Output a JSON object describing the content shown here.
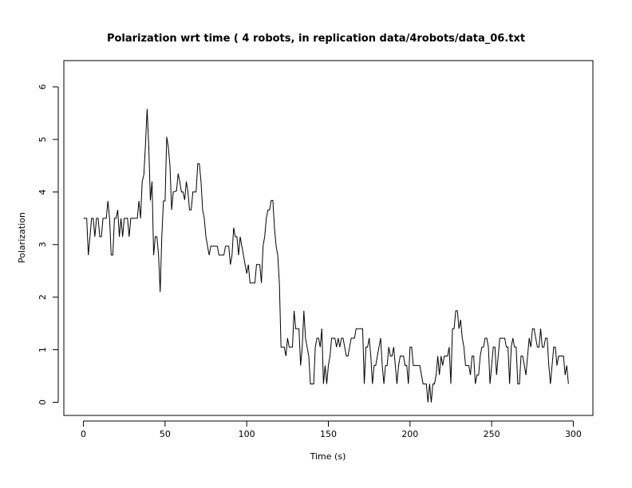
{
  "chart_data": {
    "type": "line",
    "title": "Polarization wrt time ( 4 robots, in replication  data/4robots/data_06.txt",
    "xlabel": "Time (s)",
    "ylabel": "Polarization",
    "xlim": [
      -12,
      312
    ],
    "ylim": [
      -0.25,
      6.5
    ],
    "xticks": [
      0,
      50,
      100,
      150,
      200,
      250,
      300
    ],
    "yticks": [
      0,
      1,
      2,
      3,
      4,
      5,
      6
    ],
    "grid": false,
    "series": [
      {
        "values": [
          [
            0,
            3.5
          ],
          [
            2,
            3.5
          ],
          [
            3,
            2.8
          ],
          [
            5,
            3.5
          ],
          [
            6,
            3.5
          ],
          [
            7,
            3.15
          ],
          [
            8,
            3.5
          ],
          [
            9,
            3.5
          ],
          [
            10,
            3.15
          ],
          [
            11,
            3.15
          ],
          [
            12,
            3.5
          ],
          [
            14,
            3.5
          ],
          [
            15,
            3.83
          ],
          [
            16,
            3.5
          ],
          [
            17,
            2.8
          ],
          [
            18,
            2.8
          ],
          [
            19,
            3.5
          ],
          [
            20,
            3.5
          ],
          [
            21,
            3.66
          ],
          [
            22,
            3.15
          ],
          [
            23,
            3.5
          ],
          [
            24,
            3.15
          ],
          [
            25,
            3.5
          ],
          [
            27,
            3.5
          ],
          [
            28,
            3.15
          ],
          [
            29,
            3.5
          ],
          [
            33,
            3.5
          ],
          [
            34,
            3.83
          ],
          [
            35,
            3.5
          ],
          [
            36,
            4.2
          ],
          [
            37,
            4.33
          ],
          [
            38,
            4.9
          ],
          [
            39,
            5.58
          ],
          [
            40,
            4.88
          ],
          [
            41,
            3.84
          ],
          [
            42,
            4.2
          ],
          [
            43,
            2.8
          ],
          [
            44,
            3.15
          ],
          [
            45,
            3.15
          ],
          [
            46,
            2.8
          ],
          [
            47,
            2.1
          ],
          [
            48,
            3.15
          ],
          [
            49,
            3.83
          ],
          [
            50,
            3.83
          ],
          [
            51,
            5.05
          ],
          [
            52,
            4.85
          ],
          [
            53,
            4.5
          ],
          [
            54,
            3.66
          ],
          [
            55,
            4.0
          ],
          [
            57,
            4.02
          ],
          [
            58,
            4.35
          ],
          [
            59,
            4.2
          ],
          [
            60,
            4.0
          ],
          [
            61,
            4.0
          ],
          [
            62,
            3.85
          ],
          [
            63,
            4.2
          ],
          [
            64,
            4.0
          ],
          [
            65,
            3.66
          ],
          [
            66,
            3.66
          ],
          [
            67,
            4.0
          ],
          [
            69,
            4.0
          ],
          [
            70,
            4.54
          ],
          [
            71,
            4.54
          ],
          [
            72,
            4.2
          ],
          [
            73,
            3.66
          ],
          [
            74,
            3.5
          ],
          [
            75,
            3.15
          ],
          [
            76,
            2.97
          ],
          [
            77,
            2.8
          ],
          [
            78,
            2.97
          ],
          [
            82,
            2.97
          ],
          [
            83,
            2.8
          ],
          [
            86,
            2.8
          ],
          [
            87,
            2.97
          ],
          [
            89,
            2.97
          ],
          [
            90,
            2.62
          ],
          [
            91,
            2.8
          ],
          [
            92,
            3.32
          ],
          [
            93,
            3.15
          ],
          [
            94,
            3.15
          ],
          [
            95,
            2.8
          ],
          [
            96,
            3.15
          ],
          [
            97,
            2.97
          ],
          [
            98,
            2.8
          ],
          [
            99,
            2.62
          ],
          [
            100,
            2.45
          ],
          [
            101,
            2.62
          ],
          [
            102,
            2.27
          ],
          [
            105,
            2.27
          ],
          [
            106,
            2.62
          ],
          [
            107,
            2.62
          ],
          [
            108,
            2.62
          ],
          [
            109,
            2.27
          ],
          [
            110,
            2.97
          ],
          [
            111,
            3.15
          ],
          [
            112,
            3.5
          ],
          [
            113,
            3.66
          ],
          [
            114,
            3.66
          ],
          [
            115,
            3.84
          ],
          [
            116,
            3.84
          ],
          [
            117,
            3.32
          ],
          [
            118,
            2.97
          ],
          [
            119,
            2.8
          ],
          [
            120,
            2.27
          ],
          [
            121,
            1.05
          ],
          [
            123,
            1.05
          ],
          [
            124,
            0.88
          ],
          [
            125,
            1.22
          ],
          [
            126,
            1.05
          ],
          [
            128,
            1.05
          ],
          [
            129,
            1.74
          ],
          [
            130,
            1.4
          ],
          [
            132,
            1.4
          ],
          [
            133,
            0.7
          ],
          [
            134,
            1.05
          ],
          [
            135,
            1.74
          ],
          [
            136,
            1.22
          ],
          [
            137,
            1.05
          ],
          [
            138,
            0.88
          ],
          [
            139,
            0.35
          ],
          [
            141,
            0.35
          ],
          [
            142,
            1.05
          ],
          [
            143,
            1.22
          ],
          [
            144,
            1.22
          ],
          [
            145,
            1.05
          ],
          [
            146,
            1.4
          ],
          [
            147,
            0.35
          ],
          [
            148,
            0.7
          ],
          [
            149,
            0.35
          ],
          [
            150,
            0.7
          ],
          [
            151,
            0.88
          ],
          [
            152,
            1.22
          ],
          [
            154,
            1.22
          ],
          [
            155,
            1.05
          ],
          [
            156,
            1.22
          ],
          [
            157,
            1.05
          ],
          [
            158,
            1.22
          ],
          [
            159,
            1.22
          ],
          [
            160,
            1.05
          ],
          [
            161,
            0.88
          ],
          [
            162,
            0.88
          ],
          [
            163,
            1.05
          ],
          [
            164,
            1.22
          ],
          [
            166,
            1.22
          ],
          [
            167,
            1.4
          ],
          [
            171,
            1.4
          ],
          [
            172,
            0.35
          ],
          [
            173,
            1.05
          ],
          [
            174,
            1.05
          ],
          [
            175,
            1.22
          ],
          [
            176,
            0.88
          ],
          [
            177,
            0.35
          ],
          [
            178,
            0.7
          ],
          [
            179,
            0.7
          ],
          [
            180,
            0.88
          ],
          [
            181,
            1.05
          ],
          [
            182,
            1.22
          ],
          [
            183,
            0.7
          ],
          [
            184,
            0.35
          ],
          [
            185,
            0.7
          ],
          [
            186,
            0.7
          ],
          [
            187,
            1.05
          ],
          [
            188,
            0.88
          ],
          [
            189,
            0.88
          ],
          [
            190,
            1.05
          ],
          [
            191,
            0.7
          ],
          [
            192,
            0.35
          ],
          [
            193,
            0.7
          ],
          [
            194,
            0.88
          ],
          [
            196,
            0.88
          ],
          [
            197,
            0.7
          ],
          [
            198,
            0.7
          ],
          [
            199,
            0.35
          ],
          [
            200,
            1.05
          ],
          [
            201,
            1.05
          ],
          [
            202,
            0.7
          ],
          [
            206,
            0.7
          ],
          [
            207,
            0.52
          ],
          [
            208,
            0.35
          ],
          [
            210,
            0.35
          ],
          [
            211,
            0.0
          ],
          [
            212,
            0.35
          ],
          [
            213,
            0.0
          ],
          [
            214,
            0.35
          ],
          [
            215,
            0.35
          ],
          [
            216,
            0.52
          ],
          [
            217,
            0.88
          ],
          [
            218,
            0.52
          ],
          [
            219,
            0.88
          ],
          [
            220,
            0.7
          ],
          [
            221,
            0.88
          ],
          [
            222,
            0.88
          ],
          [
            223,
            0.88
          ],
          [
            224,
            1.05
          ],
          [
            225,
            0.35
          ],
          [
            226,
            1.4
          ],
          [
            227,
            1.4
          ],
          [
            228,
            1.74
          ],
          [
            229,
            1.74
          ],
          [
            230,
            1.4
          ],
          [
            231,
            1.57
          ],
          [
            232,
            1.22
          ],
          [
            233,
            1.05
          ],
          [
            234,
            0.7
          ],
          [
            236,
            0.7
          ],
          [
            237,
            0.52
          ],
          [
            238,
            0.88
          ],
          [
            239,
            0.88
          ],
          [
            240,
            0.35
          ],
          [
            241,
            0.52
          ],
          [
            242,
            0.52
          ],
          [
            243,
            0.88
          ],
          [
            244,
            1.05
          ],
          [
            245,
            1.05
          ],
          [
            246,
            1.22
          ],
          [
            247,
            1.22
          ],
          [
            248,
            1.05
          ],
          [
            249,
            0.35
          ],
          [
            250,
            0.7
          ],
          [
            251,
            1.05
          ],
          [
            252,
            1.05
          ],
          [
            253,
            0.52
          ],
          [
            254,
            0.88
          ],
          [
            255,
            1.22
          ],
          [
            258,
            1.22
          ],
          [
            259,
            1.05
          ],
          [
            260,
            1.05
          ],
          [
            261,
            0.35
          ],
          [
            262,
            1.05
          ],
          [
            263,
            1.22
          ],
          [
            264,
            1.05
          ],
          [
            265,
            1.05
          ],
          [
            266,
            0.35
          ],
          [
            267,
            0.35
          ],
          [
            268,
            0.88
          ],
          [
            269,
            0.88
          ],
          [
            270,
            0.7
          ],
          [
            271,
            0.52
          ],
          [
            272,
            0.88
          ],
          [
            273,
            1.22
          ],
          [
            274,
            1.05
          ],
          [
            275,
            1.4
          ],
          [
            276,
            1.4
          ],
          [
            277,
            1.22
          ],
          [
            278,
            1.05
          ],
          [
            279,
            1.05
          ],
          [
            280,
            1.4
          ],
          [
            281,
            1.05
          ],
          [
            282,
            1.05
          ],
          [
            283,
            1.22
          ],
          [
            284,
            1.22
          ],
          [
            285,
            0.7
          ],
          [
            286,
            0.35
          ],
          [
            287,
            0.7
          ],
          [
            288,
            1.05
          ],
          [
            289,
            1.05
          ],
          [
            290,
            0.7
          ],
          [
            291,
            0.88
          ],
          [
            294,
            0.88
          ],
          [
            295,
            0.52
          ],
          [
            296,
            0.7
          ],
          [
            297,
            0.35
          ]
        ]
      }
    ]
  },
  "colors": {
    "line": "#000000",
    "axis": "#000000",
    "background": "#ffffff"
  }
}
